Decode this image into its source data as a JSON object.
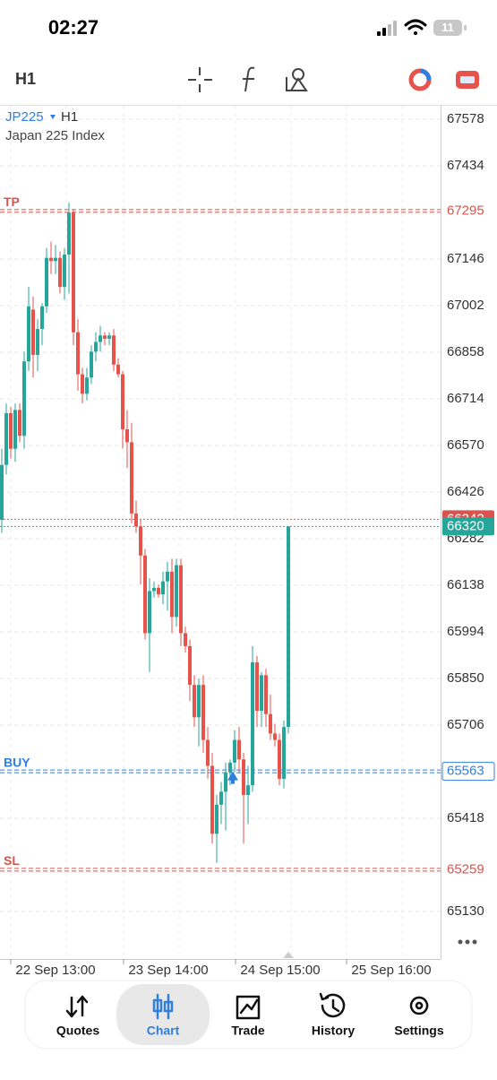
{
  "status": {
    "time": "02:27",
    "battery": "11"
  },
  "toolbar": {
    "timeframe": "H1"
  },
  "chart": {
    "symbol": "JP225",
    "timeframe": "H1",
    "description": "Japan 225 Index",
    "ylim": [
      64983,
      67620
    ],
    "yticks": [
      67578,
      67434,
      67146,
      67002,
      66858,
      66714,
      66570,
      66426,
      66282,
      66138,
      65994,
      65850,
      65706,
      65418,
      65130
    ],
    "xticks": [
      "22 Sep 13:00",
      "23 Sep 14:00",
      "24 Sep 15:00",
      "25 Sep 16:00"
    ],
    "levels": {
      "tp": {
        "label": "TP",
        "price": 67295
      },
      "entry": {
        "label": "BUY",
        "price": 65563
      },
      "sl": {
        "label": "SL",
        "price": 65259
      },
      "ask": {
        "price": 66342
      },
      "bid": {
        "price": 66320
      }
    },
    "candles": [
      [
        66340,
        66560,
        66300,
        66510
      ],
      [
        66510,
        66700,
        66480,
        66670
      ],
      [
        66670,
        66690,
        66530,
        66560
      ],
      [
        66560,
        66700,
        66520,
        66680
      ],
      [
        66680,
        66700,
        66580,
        66600
      ],
      [
        66600,
        66860,
        66560,
        66830
      ],
      [
        66830,
        67060,
        66800,
        67000
      ],
      [
        66990,
        67030,
        66780,
        66850
      ],
      [
        66850,
        66960,
        66800,
        66930
      ],
      [
        66930,
        67010,
        66880,
        67000
      ],
      [
        67000,
        67180,
        66980,
        67150
      ],
      [
        67150,
        67200,
        67100,
        67140
      ],
      [
        67140,
        67190,
        67100,
        67150
      ],
      [
        67150,
        67170,
        67040,
        67060
      ],
      [
        67060,
        67180,
        67020,
        67160
      ],
      [
        67160,
        67320,
        67040,
        67290
      ],
      [
        67290,
        67300,
        66880,
        66920
      ],
      [
        66920,
        66960,
        66740,
        66790
      ],
      [
        66790,
        66810,
        66700,
        66730
      ],
      [
        66730,
        66810,
        66710,
        66780
      ],
      [
        66780,
        66880,
        66760,
        66860
      ],
      [
        66860,
        66920,
        66830,
        66890
      ],
      [
        66890,
        66940,
        66860,
        66910
      ],
      [
        66910,
        66920,
        66880,
        66900
      ],
      [
        66900,
        66920,
        66880,
        66910
      ],
      [
        66910,
        66930,
        66800,
        66820
      ],
      [
        66820,
        66840,
        66780,
        66790
      ],
      [
        66790,
        66800,
        66560,
        66620
      ],
      [
        66620,
        66680,
        66500,
        66580
      ],
      [
        66580,
        66640,
        66330,
        66360
      ],
      [
        66360,
        66400,
        66300,
        66320
      ],
      [
        66320,
        66340,
        66140,
        66230
      ],
      [
        66230,
        66250,
        65970,
        65990
      ],
      [
        65990,
        66160,
        65870,
        66120
      ],
      [
        66120,
        66150,
        66100,
        66130
      ],
      [
        66130,
        66140,
        66100,
        66110
      ],
      [
        66110,
        66180,
        66080,
        66150
      ],
      [
        66150,
        66210,
        66060,
        66180
      ],
      [
        66180,
        66220,
        65990,
        66040
      ],
      [
        66040,
        66220,
        66010,
        66200
      ],
      [
        66200,
        66220,
        65950,
        65990
      ],
      [
        65990,
        66010,
        65930,
        65950
      ],
      [
        65950,
        65970,
        65780,
        65830
      ],
      [
        65830,
        65860,
        65700,
        65730
      ],
      [
        65730,
        65850,
        65640,
        65830
      ],
      [
        65830,
        65860,
        65620,
        65660
      ],
      [
        65660,
        65700,
        65540,
        65580
      ],
      [
        65580,
        65620,
        65340,
        65370
      ],
      [
        65370,
        65490,
        65280,
        65460
      ],
      [
        65460,
        65530,
        65400,
        65500
      ],
      [
        65500,
        65590,
        65380,
        65560
      ],
      [
        65560,
        65600,
        65520,
        65590
      ],
      [
        65590,
        65690,
        65560,
        65660
      ],
      [
        65660,
        65700,
        65560,
        65600
      ],
      [
        65600,
        65620,
        65340,
        65490
      ],
      [
        65490,
        65580,
        65400,
        65520
      ],
      [
        65520,
        65950,
        65500,
        65900
      ],
      [
        65900,
        65920,
        65700,
        65750
      ],
      [
        65750,
        65870,
        65700,
        65860
      ],
      [
        65860,
        65880,
        65700,
        65740
      ],
      [
        65740,
        65800,
        65660,
        65680
      ],
      [
        65680,
        65710,
        65640,
        65660
      ],
      [
        65660,
        65680,
        65520,
        65540
      ],
      [
        65540,
        65720,
        65510,
        65700
      ],
      [
        65700,
        66320,
        65680,
        66320
      ]
    ]
  },
  "nav": [
    "Quotes",
    "Chart",
    "Trade",
    "History",
    "Settings"
  ]
}
